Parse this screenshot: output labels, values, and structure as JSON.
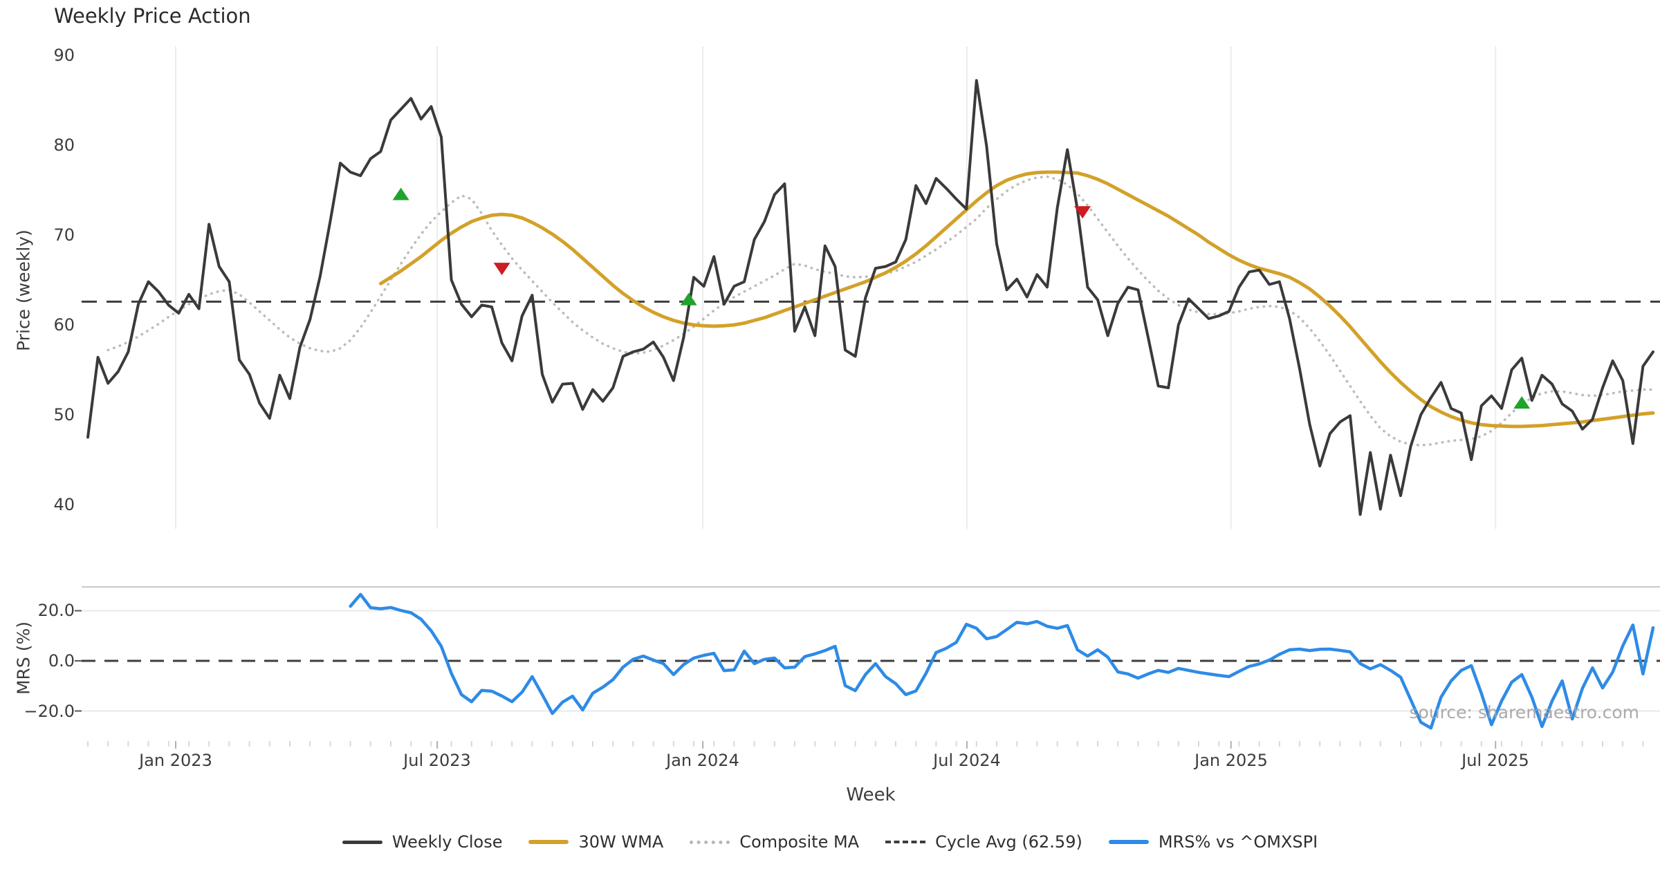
{
  "title": "Weekly Price Action",
  "watermark": "source: sharemaestro.com",
  "colors": {
    "close": "#3a3a3a",
    "wma": "#d3a129",
    "composite": "#bcbcbc",
    "cycle": "#3d3d3d",
    "mrs": "#2e8be6",
    "grid": "#ececec",
    "grid_h": "#e8e8ec",
    "spine": "#c9c9c9",
    "buy_marker": "#1fa32b",
    "sell_marker": "#cb1d22",
    "text": "#3d3d3d",
    "watermark": "#a3a3a3"
  },
  "axes": {
    "price_label": "Price (weekly)",
    "mrs_label": "MRS (%)",
    "week_label": "Week",
    "price_ticks": [
      "90",
      "80",
      "70",
      "60",
      "50",
      "40"
    ],
    "mrs_ticks": [
      "20.0",
      "0.0",
      "−20.0"
    ],
    "x_ticks": [
      {
        "week": 8.7,
        "label": "Jan 2023"
      },
      {
        "week": 34.6,
        "label": "Jul 2023"
      },
      {
        "week": 60.9,
        "label": "Jan 2024"
      },
      {
        "week": 87.05,
        "label": "Jul 2024"
      },
      {
        "week": 113.2,
        "label": "Jan 2025"
      },
      {
        "week": 139.4,
        "label": "Jul 2025"
      }
    ]
  },
  "legend": {
    "items": [
      {
        "label": "Weekly Close"
      },
      {
        "label": "30W WMA"
      },
      {
        "label": "Composite MA"
      },
      {
        "label": "Cycle Avg (62.59)"
      },
      {
        "label": "MRS% vs ^OMXSPI"
      }
    ]
  },
  "chart_data": {
    "type": "line",
    "title": "Weekly Price Action",
    "xlabel": "Week",
    "x_range_weeks": [
      0,
      155
    ],
    "cycle_avg": 62.59,
    "panels": [
      {
        "ylabel": "Price (weekly)",
        "ylim": [
          37.3,
          91.0
        ],
        "yticks": [
          90,
          80,
          70,
          60,
          50,
          40
        ]
      },
      {
        "ylabel": "MRS (%)",
        "ylim": [
          -34.2,
          29.5
        ],
        "yticks": [
          20.0,
          0.0,
          -20.0
        ]
      }
    ],
    "series": [
      {
        "name": "Weekly Close",
        "panel": 0,
        "style": "solid",
        "width": 4,
        "color": "#3a3a3a",
        "start_week": 0,
        "values": [
          47.5,
          56.4,
          53.5,
          54.8,
          57.0,
          62.3,
          64.8,
          63.7,
          62.2,
          61.3,
          63.4,
          61.8,
          71.2,
          66.5,
          64.8,
          56.1,
          54.5,
          51.3,
          49.6,
          54.4,
          51.8,
          57.5,
          60.6,
          65.4,
          71.5,
          78.0,
          77.0,
          76.6,
          78.5,
          79.3,
          82.8,
          84.0,
          85.2,
          82.9,
          84.3,
          80.9,
          65.0,
          62.3,
          60.9,
          62.2,
          62.0,
          58.0,
          56.0,
          61.0,
          63.3,
          54.5,
          51.4,
          53.4,
          53.5,
          50.6,
          52.8,
          51.5,
          53.0,
          56.5,
          57.0,
          57.3,
          58.1,
          56.4,
          53.8,
          58.6,
          65.3,
          64.3,
          67.6,
          62.3,
          64.3,
          64.8,
          69.5,
          71.5,
          74.5,
          75.7,
          59.3,
          62.0,
          58.8,
          68.8,
          66.5,
          57.2,
          56.5,
          63.0,
          66.3,
          66.5,
          67.0,
          69.5,
          75.5,
          73.5,
          76.3,
          75.2,
          74.0,
          72.9,
          87.2,
          79.9,
          69.0,
          63.9,
          65.1,
          63.1,
          65.6,
          64.2,
          73.0,
          79.5,
          72.8,
          64.2,
          62.8,
          58.8,
          62.4,
          64.2,
          63.9,
          58.6,
          53.2,
          53.0,
          60.0,
          62.9,
          61.8,
          60.7,
          61.0,
          61.5,
          64.2,
          65.9,
          66.1,
          64.5,
          64.8,
          60.7,
          55.1,
          48.9,
          44.3,
          47.9,
          49.2,
          49.9,
          38.9,
          45.8,
          39.5,
          45.5,
          41.0,
          46.5,
          50.0,
          51.9,
          53.6,
          50.7,
          50.2,
          45.0,
          51.0,
          52.1,
          50.7,
          55.0,
          56.3,
          51.6,
          54.4,
          53.4,
          51.2,
          50.4,
          48.4,
          49.5,
          53.0,
          56.0,
          53.8,
          46.8,
          55.4,
          57.0
        ]
      },
      {
        "name": "30W WMA",
        "panel": 0,
        "style": "solid",
        "width": 5,
        "color": "#d3a129",
        "start_week": 29,
        "values": [
          64.6,
          65.3,
          66.0,
          66.8,
          67.6,
          68.5,
          69.4,
          70.2,
          70.9,
          71.5,
          71.9,
          72.2,
          72.3,
          72.2,
          71.9,
          71.4,
          70.8,
          70.1,
          69.3,
          68.4,
          67.4,
          66.4,
          65.4,
          64.4,
          63.5,
          62.7,
          62.0,
          61.4,
          60.9,
          60.5,
          60.2,
          60.0,
          59.9,
          59.85,
          59.9,
          60.0,
          60.2,
          60.5,
          60.8,
          61.2,
          61.6,
          62.0,
          62.4,
          62.8,
          63.2,
          63.6,
          64.0,
          64.4,
          64.8,
          65.3,
          65.8,
          66.4,
          67.1,
          67.9,
          68.8,
          69.8,
          70.8,
          71.8,
          72.8,
          73.8,
          74.7,
          75.5,
          76.1,
          76.5,
          76.8,
          76.95,
          77.0,
          77.0,
          76.95,
          76.9,
          76.6,
          76.2,
          75.7,
          75.1,
          74.5,
          73.9,
          73.3,
          72.7,
          72.1,
          71.4,
          70.7,
          70.0,
          69.2,
          68.5,
          67.8,
          67.2,
          66.7,
          66.3,
          66.0,
          65.7,
          65.3,
          64.7,
          64.0,
          63.1,
          62.1,
          61.0,
          59.8,
          58.5,
          57.2,
          55.9,
          54.7,
          53.6,
          52.6,
          51.7,
          50.9,
          50.3,
          49.8,
          49.4,
          49.1,
          48.9,
          48.8,
          48.75,
          48.7,
          48.7,
          48.75,
          48.8,
          48.9,
          49.0,
          49.1,
          49.2,
          49.35,
          49.5,
          49.65,
          49.8,
          49.95,
          50.1,
          50.2
        ]
      },
      {
        "name": "Composite MA",
        "panel": 0,
        "style": "dotted",
        "width": 3.6,
        "color": "#bcbcbc",
        "start_week": 2,
        "values": [
          57.2,
          57.6,
          58.1,
          58.7,
          59.4,
          60.1,
          60.9,
          61.6,
          62.3,
          62.9,
          63.4,
          63.75,
          63.9,
          63.4,
          62.5,
          61.5,
          60.5,
          59.5,
          58.6,
          57.9,
          57.4,
          57.1,
          57.0,
          57.4,
          58.3,
          59.7,
          61.4,
          63.2,
          65.0,
          66.8,
          68.5,
          70.1,
          71.5,
          72.6,
          73.6,
          74.4,
          74.0,
          72.4,
          70.5,
          68.9,
          67.4,
          66.1,
          64.9,
          63.7,
          62.5,
          61.4,
          60.3,
          59.4,
          58.6,
          57.9,
          57.4,
          57.0,
          56.8,
          56.9,
          57.2,
          57.7,
          58.3,
          59.0,
          59.8,
          60.7,
          61.6,
          62.4,
          63.1,
          63.7,
          64.3,
          64.9,
          65.5,
          66.2,
          66.8,
          66.6,
          66.2,
          65.9,
          65.7,
          65.4,
          65.3,
          65.35,
          65.5,
          65.7,
          66.0,
          66.5,
          67.0,
          67.7,
          68.4,
          69.2,
          70.0,
          70.9,
          71.8,
          73.0,
          74.0,
          74.9,
          75.6,
          76.1,
          76.4,
          76.5,
          76.2,
          75.6,
          74.6,
          73.3,
          71.8,
          70.3,
          68.8,
          67.4,
          66.1,
          64.9,
          63.8,
          62.9,
          62.2,
          61.7,
          61.4,
          61.2,
          61.2,
          61.3,
          61.5,
          61.8,
          62.0,
          62.1,
          62.0,
          61.6,
          60.8,
          59.6,
          58.2,
          56.6,
          54.9,
          53.2,
          51.5,
          49.9,
          48.5,
          47.6,
          47.0,
          46.7,
          46.6,
          46.7,
          46.9,
          47.1,
          47.2,
          47.3,
          47.6,
          48.2,
          49.1,
          50.2,
          51.2,
          51.9,
          52.4,
          52.6,
          52.6,
          52.4,
          52.2,
          52.1,
          52.2,
          52.4,
          52.6,
          52.7,
          52.8,
          52.8
        ]
      },
      {
        "name": "Cycle Avg (62.59)",
        "panel": 0,
        "style": "dashed",
        "width": 3,
        "color": "#3d3d3d",
        "hline": 62.59
      },
      {
        "name": "MRS% vs ^OMXSPI",
        "panel": 1,
        "style": "solid",
        "width": 4.5,
        "color": "#2e8be6",
        "start_week": 26,
        "values": [
          21.8,
          26.5,
          21.2,
          20.8,
          21.3,
          20.1,
          19.2,
          16.6,
          12.0,
          5.8,
          -5.0,
          -13.5,
          -16.3,
          -11.8,
          -12.1,
          -14.0,
          -16.3,
          -12.5,
          -6.3,
          -13.5,
          -21.0,
          -16.5,
          -14.1,
          -19.6,
          -12.9,
          -10.5,
          -7.5,
          -2.5,
          0.6,
          1.9,
          0.3,
          -1.1,
          -5.5,
          -1.5,
          1.1,
          2.2,
          3.0,
          -3.9,
          -3.6,
          3.9,
          -1.1,
          0.6,
          1.1,
          -2.8,
          -2.5,
          1.7,
          2.8,
          4.1,
          5.8,
          -9.9,
          -11.9,
          -5.5,
          -1.1,
          -6.3,
          -9.1,
          -13.5,
          -12.0,
          -5.0,
          3.3,
          5.0,
          7.4,
          14.6,
          13.0,
          8.8,
          9.7,
          12.5,
          15.4,
          14.8,
          15.7,
          13.8,
          13.0,
          14.1,
          4.4,
          1.9,
          4.4,
          1.5,
          -4.4,
          -5.2,
          -6.9,
          -5.2,
          -3.8,
          -4.6,
          -3.0,
          -3.8,
          -4.6,
          -5.2,
          -5.8,
          -6.3,
          -4.2,
          -2.2,
          -1.2,
          0.3,
          2.6,
          4.4,
          4.7,
          4.1,
          4.6,
          4.7,
          4.2,
          3.6,
          -1.1,
          -3.2,
          -1.5,
          -3.8,
          -6.5,
          -15.5,
          -24.5,
          -26.8,
          -14.5,
          -8.0,
          -3.8,
          -1.9,
          -13.0,
          -25.5,
          -16.0,
          -8.5,
          -5.5,
          -14.5,
          -26.2,
          -16.0,
          -8.0,
          -23.2,
          -11.0,
          -2.8,
          -10.8,
          -4.5,
          6.0,
          14.3,
          -5.2,
          13.2
        ]
      }
    ],
    "markers": {
      "buy": [
        {
          "week": 31,
          "price": 74.5
        },
        {
          "week": 59.5,
          "price": 62.8
        },
        {
          "week": 142,
          "price": 51.3
        }
      ],
      "sell": [
        {
          "week": 41,
          "price": 66.3
        },
        {
          "week": 98.5,
          "price": 72.6
        }
      ]
    },
    "legend_position": "bottom-center",
    "grid": {
      "top_panel": "vertical",
      "bottom_panel": "horizontal"
    }
  }
}
